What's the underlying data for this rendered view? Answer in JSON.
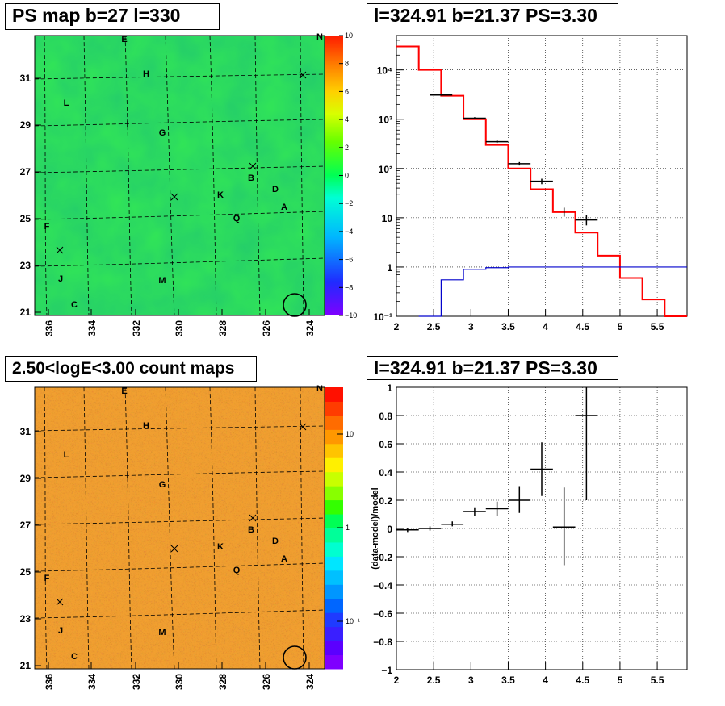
{
  "titles": {
    "ps_map": "PS map b=27 l=330",
    "spectrum": "l=324.91 b=21.37 PS=3.30",
    "count_map": "2.50<logE<3.00 count maps",
    "residual": "l=324.91 b=21.37 PS=3.30"
  },
  "colors": {
    "model": "#ff0000",
    "background_model": "#0000cc",
    "data": "#000000",
    "ps_map_fill": "#33e855",
    "count_map_fill": "#f2a030"
  },
  "maps": {
    "x_ticks": [
      "336",
      "334",
      "332",
      "330",
      "328",
      "326",
      "324"
    ],
    "y_ticks": [
      "31",
      "29",
      "27",
      "25",
      "23",
      "21"
    ],
    "labels": [
      "E",
      "N",
      "H",
      "L",
      "I",
      "G",
      "B",
      "D",
      "K",
      "A",
      "Q",
      "F",
      "J",
      "M",
      "C"
    ],
    "ps_colorbar_ticks": [
      "10",
      "8",
      "6",
      "4",
      "2",
      "0",
      "−2",
      "−4",
      "−6",
      "−8",
      "−10"
    ],
    "count_colorbar_ticks": [
      "10",
      "1",
      "10⁻¹"
    ]
  },
  "chart_data": [
    {
      "type": "line",
      "title": "l=324.91 b=21.37 PS=3.30",
      "xlabel": "",
      "ylabel": "",
      "xlim": [
        2,
        5.9
      ],
      "ylim": [
        0.1,
        50000
      ],
      "yscale": "log",
      "x_ticks": [
        "2",
        "2.5",
        "3",
        "3.5",
        "4",
        "4.5",
        "5",
        "5.5"
      ],
      "y_ticks": [
        "10⁻¹",
        "1",
        "10",
        "10²",
        "10³",
        "10⁴"
      ],
      "series": [
        {
          "role": "model",
          "style": "red step",
          "bins": [
            [
              2.0,
              2.3
            ],
            [
              2.3,
              2.6
            ],
            [
              2.6,
              2.9
            ],
            [
              2.9,
              3.2
            ],
            [
              3.2,
              3.5
            ],
            [
              3.5,
              3.8
            ],
            [
              3.8,
              4.1
            ],
            [
              4.1,
              4.4
            ],
            [
              4.4,
              4.7
            ],
            [
              4.7,
              5.0
            ],
            [
              5.0,
              5.3
            ],
            [
              5.3,
              5.6
            ],
            [
              5.6,
              5.9
            ]
          ],
          "values": [
            30000,
            10000,
            3000,
            1000,
            300,
            100,
            38,
            13,
            5,
            1.7,
            0.6,
            0.22,
            0.1
          ]
        },
        {
          "role": "background",
          "style": "blue step",
          "bins": [
            [
              2.3,
              2.6
            ],
            [
              2.6,
              2.9
            ],
            [
              2.9,
              3.2
            ],
            [
              3.2,
              3.5
            ],
            [
              3.5,
              5.9
            ]
          ],
          "values": [
            0.1,
            0.55,
            0.9,
            0.97,
            1.0
          ]
        },
        {
          "role": "data",
          "style": "black crosses",
          "points": [
            {
              "x": 2.6,
              "dx": 0.15,
              "y": 3100,
              "ylo": 3000,
              "yhi": 3200
            },
            {
              "x": 3.05,
              "dx": 0.15,
              "y": 1050,
              "ylo": 1000,
              "yhi": 1100
            },
            {
              "x": 3.35,
              "dx": 0.15,
              "y": 350,
              "ylo": 330,
              "yhi": 375
            },
            {
              "x": 3.65,
              "dx": 0.15,
              "y": 125,
              "ylo": 115,
              "yhi": 135
            },
            {
              "x": 3.95,
              "dx": 0.15,
              "y": 55,
              "ylo": 48,
              "yhi": 62
            },
            {
              "x": 4.25,
              "dx": 0.0,
              "y": 13,
              "ylo": 10.5,
              "yhi": 16
            },
            {
              "x": 4.55,
              "dx": 0.15,
              "y": 9,
              "ylo": 7,
              "yhi": 11.5
            }
          ]
        }
      ]
    },
    {
      "type": "scatter",
      "title": "l=324.91 b=21.37 PS=3.30",
      "xlabel": "",
      "ylabel": "(data-model)/model",
      "xlim": [
        2,
        5.9
      ],
      "ylim": [
        -1,
        1
      ],
      "x_ticks": [
        "2",
        "2.5",
        "3",
        "3.5",
        "4",
        "4.5",
        "5",
        "5.5"
      ],
      "y_ticks": [
        "1",
        "0.8",
        "0.6",
        "0.4",
        "0.2",
        "0",
        "−0.2",
        "−0.4",
        "−0.6",
        "−0.8",
        "−1"
      ],
      "points": [
        {
          "x": 2.15,
          "dx": 0.15,
          "y": -0.01,
          "ylo": -0.025,
          "yhi": 0.005
        },
        {
          "x": 2.45,
          "dx": 0.15,
          "y": 0.0,
          "ylo": -0.015,
          "yhi": 0.015
        },
        {
          "x": 2.75,
          "dx": 0.15,
          "y": 0.03,
          "ylo": 0.015,
          "yhi": 0.05
        },
        {
          "x": 3.05,
          "dx": 0.15,
          "y": 0.12,
          "ylo": 0.09,
          "yhi": 0.15
        },
        {
          "x": 3.35,
          "dx": 0.15,
          "y": 0.14,
          "ylo": 0.09,
          "yhi": 0.19
        },
        {
          "x": 3.65,
          "dx": 0.15,
          "y": 0.2,
          "ylo": 0.11,
          "yhi": 0.3
        },
        {
          "x": 3.95,
          "dx": 0.15,
          "y": 0.42,
          "ylo": 0.23,
          "yhi": 0.61
        },
        {
          "x": 4.25,
          "dx": 0.15,
          "y": 0.01,
          "ylo": -0.26,
          "yhi": 0.29
        },
        {
          "x": 4.55,
          "dx": 0.15,
          "y": 0.8,
          "ylo": 0.2,
          "yhi": 1.0
        }
      ]
    }
  ]
}
